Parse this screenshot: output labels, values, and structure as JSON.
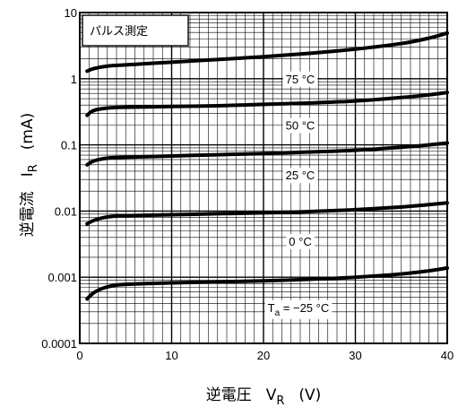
{
  "chart_data": {
    "type": "line",
    "title": "",
    "note": "パルス測定",
    "xlabel": "逆電圧",
    "xlabel_symbol": "V",
    "xlabel_sub": "R",
    "xlabel_unit": "(V)",
    "ylabel": "逆電流",
    "ylabel_symbol": "I",
    "ylabel_sub": "R",
    "ylabel_unit": "(mA)",
    "xlim": [
      0,
      40
    ],
    "ylim": [
      0.0001,
      10
    ],
    "yscale": "log",
    "grid": true,
    "x_ticks": [
      0,
      10,
      20,
      30,
      40
    ],
    "x_tick_labels": [
      "0",
      "10",
      "20",
      "30",
      "40"
    ],
    "y_ticks": [
      0.0001,
      0.001,
      0.01,
      0.1,
      1,
      10
    ],
    "y_tick_labels": [
      "0.0001",
      "0.001",
      "0.01",
      "0.1",
      "1",
      "10"
    ],
    "series": [
      {
        "name": "75 °C",
        "label": "75 °C",
        "label_at": [
          24,
          1.0
        ],
        "x": [
          0.8,
          1.5,
          3,
          5,
          10,
          15,
          20,
          25,
          30,
          35,
          38,
          40
        ],
        "y": [
          1.3,
          1.42,
          1.55,
          1.62,
          1.78,
          1.95,
          2.15,
          2.42,
          2.8,
          3.4,
          4.1,
          4.9
        ]
      },
      {
        "name": "50 °C",
        "label": "50 °C",
        "label_at": [
          24,
          0.2
        ],
        "x": [
          0.8,
          1.5,
          3,
          5,
          10,
          15,
          20,
          25,
          30,
          35,
          38,
          40
        ],
        "y": [
          0.28,
          0.33,
          0.36,
          0.37,
          0.38,
          0.39,
          0.41,
          0.43,
          0.46,
          0.52,
          0.57,
          0.62
        ]
      },
      {
        "name": "25 °C",
        "label": "25 °C",
        "label_at": [
          24,
          0.035
        ],
        "x": [
          0.8,
          1.5,
          3,
          5,
          10,
          15,
          20,
          25,
          30,
          35,
          38,
          40
        ],
        "y": [
          0.05,
          0.057,
          0.063,
          0.065,
          0.068,
          0.071,
          0.074,
          0.078,
          0.083,
          0.092,
          0.1,
          0.107
        ]
      },
      {
        "name": "0 °C",
        "label": "0 °C",
        "label_at": [
          24,
          0.0035
        ],
        "x": [
          0.8,
          1.5,
          2.5,
          3.5,
          5,
          10,
          15,
          20,
          25,
          30,
          35,
          38,
          40
        ],
        "y": [
          0.0064,
          0.0072,
          0.0079,
          0.0083,
          0.0085,
          0.0088,
          0.0091,
          0.0094,
          0.0098,
          0.0105,
          0.0115,
          0.0125,
          0.0133
        ]
      },
      {
        "name": "Ta = -25 °C",
        "label": "Ta = −25 °C",
        "label_prefix": "T",
        "label_sub": "a",
        "label_rest": "= −25 °C",
        "label_at": [
          23.8,
          0.00035
        ],
        "x": [
          0.8,
          1.5,
          2.5,
          3.5,
          5,
          10,
          15,
          20,
          25,
          30,
          35,
          38,
          40
        ],
        "y": [
          0.00047,
          0.00058,
          0.00068,
          0.00074,
          0.00078,
          0.00082,
          0.00085,
          0.00088,
          0.00093,
          0.001,
          0.00112,
          0.00125,
          0.00138
        ]
      }
    ]
  }
}
